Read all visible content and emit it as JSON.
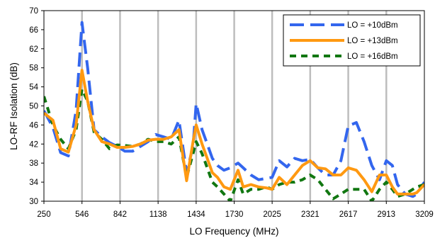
{
  "chart_data": {
    "type": "line",
    "title": "",
    "xlabel": "LO Frequency (MHz)",
    "ylabel": "LO-RF Isolation (dB)",
    "xlim": [
      250,
      3209
    ],
    "ylim": [
      30,
      70
    ],
    "x_ticks": [
      "250",
      "546",
      "842",
      "1138",
      "1434",
      "1730",
      "2025",
      "2321",
      "2617",
      "2913",
      "3209"
    ],
    "y_ticks": [
      "30",
      "34",
      "38",
      "42",
      "46",
      "50",
      "54",
      "58",
      "62",
      "66",
      "70"
    ],
    "grid": "vertical",
    "legend_position": "top-right",
    "x": [
      250,
      320,
      380,
      440,
      500,
      546,
      590,
      640,
      700,
      760,
      820,
      880,
      940,
      1000,
      1060,
      1120,
      1180,
      1240,
      1300,
      1360,
      1410,
      1434,
      1480,
      1520,
      1560,
      1600,
      1650,
      1700,
      1760,
      1800,
      1860,
      1920,
      1980,
      2025,
      2080,
      2140,
      2200,
      2260,
      2321,
      2380,
      2440,
      2500,
      2560,
      2617,
      2680,
      2740,
      2800,
      2860,
      2913,
      2960,
      3000,
      3060,
      3120,
      3150,
      3209
    ],
    "series": [
      {
        "name": "LO = +10dBm",
        "color": "#3366ee",
        "style": "long-dash",
        "values": [
          49,
          45.5,
          40.2,
          39.5,
          49,
          67.5,
          58,
          45,
          43.5,
          42.3,
          41.5,
          40.5,
          40.5,
          41.5,
          42.5,
          44,
          43.5,
          43,
          47,
          36,
          41.5,
          50.5,
          45,
          42,
          39,
          37.5,
          36.5,
          37,
          38,
          37,
          35.5,
          34.5,
          34.8,
          35,
          38.5,
          37.2,
          39,
          38.5,
          38.8,
          37,
          35.5,
          35.5,
          38.5,
          45.8,
          46.5,
          42.5,
          37.5,
          34.5,
          38.5,
          37.5,
          33.5,
          31.5,
          31,
          31.5,
          34
        ]
      },
      {
        "name": "LO = +13dBm",
        "color": "#ff9911",
        "style": "solid",
        "values": [
          48.5,
          47,
          41,
          40.3,
          46,
          57.5,
          51,
          45,
          42.5,
          42,
          41.3,
          41.3,
          41.5,
          42,
          42.8,
          43,
          43,
          43.5,
          45,
          34.3,
          42.5,
          46,
          42,
          39,
          36,
          35,
          33,
          32.5,
          36.5,
          33,
          33.5,
          33,
          32.8,
          32.5,
          35,
          33.5,
          35.5,
          37.5,
          38.5,
          37,
          36.8,
          35.5,
          35.5,
          37,
          36.5,
          34.5,
          32,
          35.5,
          35.5,
          33,
          31.5,
          31.5,
          31.5,
          31.8,
          33.5
        ]
      },
      {
        "name": "LO = +16dBm",
        "color": "#117711",
        "style": "short-dash",
        "values": [
          52,
          46,
          43,
          41,
          45,
          53.5,
          51,
          44.5,
          43,
          41,
          41.8,
          41.7,
          41.5,
          42,
          43,
          42.5,
          42.5,
          42,
          43.5,
          35,
          40,
          42.5,
          40,
          37,
          34,
          33,
          31.5,
          30,
          34.5,
          31.5,
          32.5,
          32.5,
          33,
          32.5,
          33.5,
          34,
          34,
          34.5,
          35.5,
          34.5,
          32.5,
          30.5,
          31.5,
          32.5,
          32.5,
          32.5,
          30,
          32.5,
          34,
          32.5,
          31,
          31.5,
          32.5,
          33,
          33.5
        ]
      }
    ]
  }
}
